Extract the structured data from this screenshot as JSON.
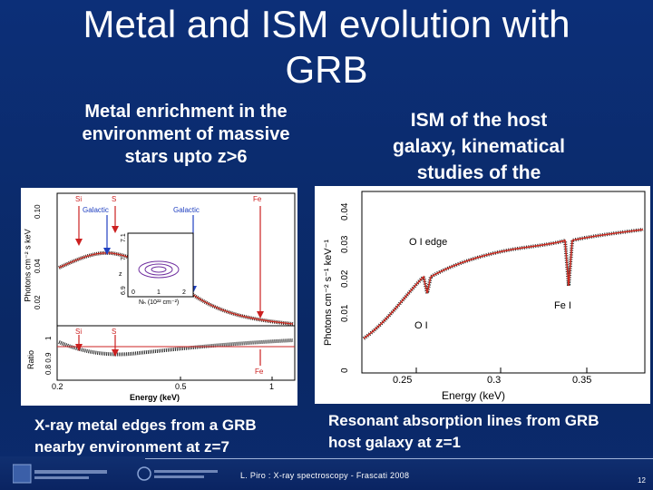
{
  "slide": {
    "title": "Metal and ISM evolution with GRB",
    "left_heading": "Metal enrichment in the environment of massive stars upto z>6",
    "right_heading": "ISM of the host galaxy, kinematical studies of the outflows",
    "left_caption": "X-ray metal edges from a GRB nearby environment at z=7",
    "right_caption": "Resonant absorption lines from GRB host galaxy at z=1",
    "footer": "L. Piro : X-ray spectroscopy  -  Frascati 2008",
    "page_number": "12"
  },
  "left_plot": {
    "top_ylabel": "Photons cm⁻² s keV",
    "bottom_ylabel": "Ratio",
    "xlabel": "Energy (keV)",
    "top_yticks": [
      "0.10",
      "0.04",
      "0.02"
    ],
    "bottom_yticks": [
      "1",
      "0.8 0.9"
    ],
    "xticks": [
      "0.2",
      "0.5",
      "1"
    ],
    "edge_labels_top": [
      "Si",
      "S",
      "Fe"
    ],
    "galactic_labels": [
      "Galactic",
      "Galactic"
    ],
    "edge_labels_bottom": [
      "Si",
      "S",
      "Fe"
    ],
    "inset_xlabel": "Nₕ (10²² cm⁻²)",
    "inset_ylabel": "z",
    "inset_yticks": [
      "7.1",
      "7",
      "6.9"
    ],
    "inset_xticks": [
      "0",
      "1",
      "2"
    ]
  },
  "right_plot": {
    "ylabel": "Photons cm⁻² s⁻¹ keV⁻¹",
    "xlabel": "Energy (keV)",
    "yticks": [
      "0.04",
      "0.03",
      "0.02",
      "0.01",
      "0"
    ],
    "xticks": [
      "0.25",
      "0.3",
      "0.35"
    ],
    "line_labels": [
      "O I edge",
      "O I",
      "Fe I"
    ]
  },
  "colors": {
    "background": "#0b2a6e",
    "spectrum_model": "#cc2a20",
    "annotation_red": "#cc2020",
    "annotation_blue": "#2040c0"
  }
}
